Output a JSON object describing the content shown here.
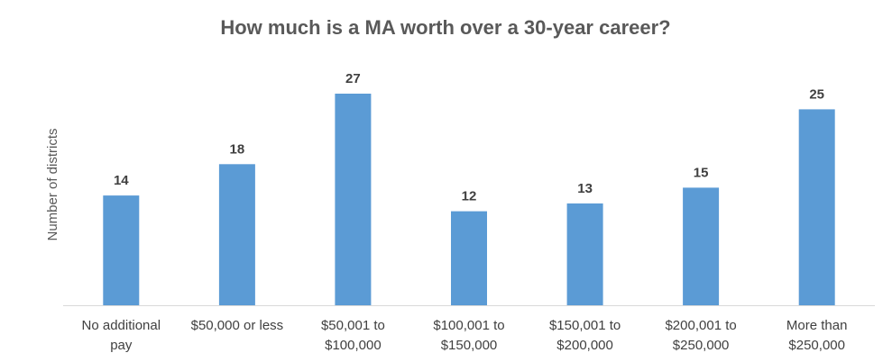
{
  "chart_data": {
    "type": "bar",
    "title": "How much is a MA worth over a 30-year career?",
    "xlabel": "",
    "ylabel": "Number of districts",
    "categories": [
      [
        "No additional",
        "pay"
      ],
      [
        "$50,000 or less"
      ],
      [
        "$50,001 to",
        "$100,000"
      ],
      [
        "$100,001 to",
        "$150,000"
      ],
      [
        "$150,001 to",
        "$200,000"
      ],
      [
        "$200,001 to",
        "$250,000"
      ],
      [
        "More than",
        "$250,000"
      ]
    ],
    "values": [
      14,
      18,
      27,
      12,
      13,
      15,
      25
    ],
    "ylim": [
      0,
      27
    ],
    "grid": false,
    "legend": "none",
    "bar_color": "#5B9BD5",
    "axis_color": "#D9D9D9"
  }
}
